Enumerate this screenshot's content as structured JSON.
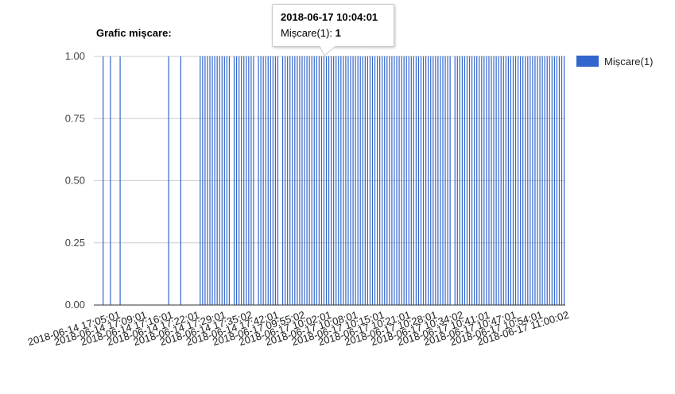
{
  "chart_data": {
    "type": "bar",
    "title": "Grafic mișcare",
    "title_display": "Grafic mișcare:",
    "xlabel": "",
    "ylabel": "",
    "ylim": [
      0,
      1
    ],
    "yticks": [
      "0.00",
      "0.25",
      "0.50",
      "0.75",
      "1.00"
    ],
    "grid": true,
    "legend_position": "right",
    "series": [
      {
        "name": "Mișcare(1)",
        "color": "#3366cc"
      }
    ],
    "x_tick_labels": [
      "2018-06-14 17:05:01",
      "2018-06-14 17:09:01",
      "2018-06-14 17:16:01",
      "2018-06-14 17:22:01",
      "2018-06-14 17:29:01",
      "2018-06-14 17:35:02",
      "2018-06-14 17:42:01",
      "2018-06-17 09:55:02",
      "2018-06-17 10:02:01",
      "2018-06-17 10:08:01",
      "2018-06-17 10:15:01",
      "2018-06-17 10:21:01",
      "2018-06-17 10:28:01",
      "2018-06-17 10:34:02",
      "2018-06-17 10:41:01",
      "2018-06-17 10:47:01",
      "2018-06-17 10:54:01",
      "2018-06-17 11:00:02"
    ],
    "x_slot_count": 193,
    "active_slots": [
      2,
      5,
      9,
      29,
      34,
      42,
      43,
      44,
      45,
      46,
      47,
      48,
      49,
      50,
      51,
      52,
      53,
      54,
      56,
      57,
      58,
      59,
      60,
      61,
      62,
      63,
      64,
      66,
      67,
      68,
      69,
      70,
      71,
      72,
      73,
      74,
      76,
      77,
      78,
      79,
      80,
      81,
      82,
      83,
      84,
      85,
      86,
      87,
      88,
      89,
      90,
      91,
      92,
      93,
      94,
      95,
      96,
      97,
      98,
      99,
      100,
      101,
      102,
      103,
      104,
      105,
      106,
      107,
      108,
      109,
      110,
      111,
      112,
      113,
      114,
      115,
      116,
      117,
      118,
      119,
      120,
      121,
      122,
      123,
      124,
      125,
      126,
      127,
      128,
      129,
      130,
      131,
      132,
      133,
      134,
      135,
      136,
      137,
      138,
      139,
      140,
      141,
      142,
      143,
      144,
      145,
      147,
      148,
      149,
      150,
      151,
      152,
      153,
      154,
      155,
      156,
      157,
      158,
      159,
      160,
      161,
      162,
      163,
      164,
      165,
      166,
      167,
      168,
      169,
      170,
      171,
      172,
      173,
      174,
      175,
      176,
      177,
      178,
      179,
      180,
      181,
      182,
      183,
      184,
      185,
      186,
      187,
      188,
      189,
      190,
      191,
      192
    ],
    "value": 1
  },
  "tooltip": {
    "title": "2018-06-17 10:04:01",
    "series_label": "Mișcare(1): ",
    "value": "1"
  }
}
